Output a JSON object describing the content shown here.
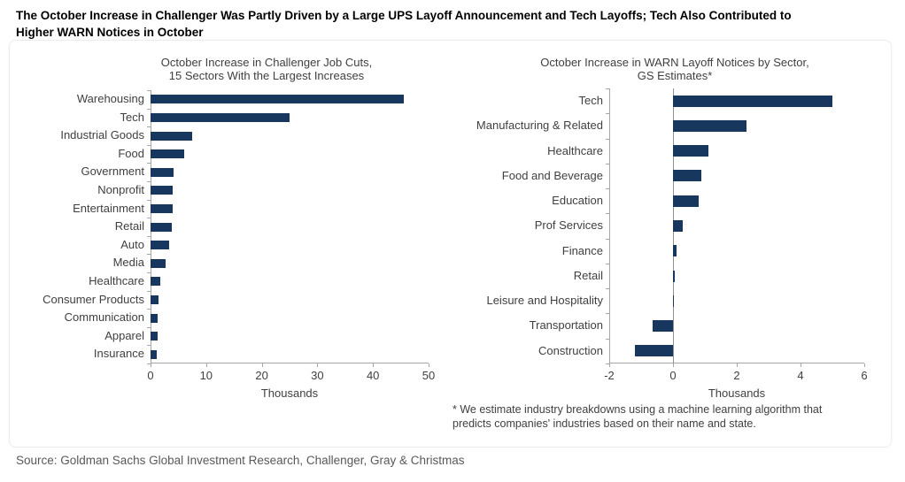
{
  "header": {
    "title_lines": [
      "The October Increase in Challenger Was Partly Driven by a Large UPS Layoff Announcement and Tech Layoffs; Tech Also Contributed to",
      "Higher WARN Notices in October"
    ]
  },
  "source": "Source: Goldman Sachs Global Investment Research, Challenger, Gray & Christmas",
  "colors": {
    "bar": "#17375E",
    "axis": "#a6a6a6",
    "zero_line": "#909090",
    "chart_text": "#404040",
    "source_text": "#595959"
  },
  "chart_data": [
    {
      "type": "bar",
      "orientation": "horizontal",
      "title": "October Increase in Challenger Job Cuts, 15 Sectors With the Largest Increases",
      "title_lines": [
        "October Increase in Challenger Job Cuts,",
        "15 Sectors With the Largest Increases"
      ],
      "categories": [
        "Warehousing",
        "Tech",
        "Industrial Goods",
        "Food",
        "Government",
        "Nonprofit",
        "Entertainment",
        "Retail",
        "Auto",
        "Media",
        "Healthcare",
        "Consumer Products",
        "Communication",
        "Apparel",
        "Insurance"
      ],
      "values": [
        45.5,
        25.0,
        7.5,
        6.0,
        4.1,
        4.0,
        4.0,
        3.8,
        3.4,
        2.7,
        1.7,
        1.5,
        1.3,
        1.3,
        1.1
      ],
      "xlabel": "Thousands",
      "xlim": [
        0,
        50
      ],
      "xticks": [
        0,
        10,
        20,
        30,
        40,
        50
      ],
      "grid": false,
      "legend": false
    },
    {
      "type": "bar",
      "orientation": "horizontal",
      "title": "October Increase in WARN Layoff Notices by Sector, GS Estimates*",
      "title_lines": [
        "October Increase in WARN Layoff Notices by Sector,",
        "GS Estimates*"
      ],
      "categories": [
        "Tech",
        "Manufacturing & Related",
        "Healthcare",
        "Food and Beverage",
        "Education",
        "Prof Services",
        "Finance",
        "Retail",
        "Leisure and Hospitality",
        "Transportation",
        "Construction"
      ],
      "values": [
        5.0,
        2.3,
        1.1,
        0.9,
        0.8,
        0.3,
        0.1,
        0.05,
        0.03,
        -0.65,
        -1.2
      ],
      "xlabel": "Thousands",
      "xlim": [
        -2,
        6
      ],
      "xticks": [
        -2,
        0,
        2,
        4,
        6
      ],
      "grid": false,
      "legend": false,
      "footnote_lines": [
        "* We estimate industry breakdowns using a machine learning algorithm that",
        "predicts companies' industries based on their name and state."
      ]
    }
  ]
}
